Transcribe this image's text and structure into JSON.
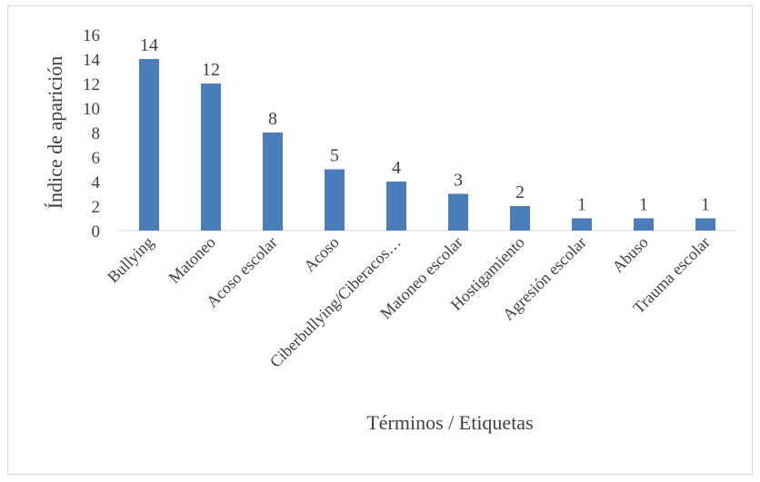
{
  "chart_data": {
    "type": "bar",
    "title": "",
    "xlabel": "Términos / Etiquetas",
    "ylabel": "Índice de aparición",
    "categories": [
      "Bullying",
      "Matoneo",
      "Acoso escolar",
      "Acoso",
      "Ciberbullying/Ciberacos…",
      "Matoneo escolar",
      "Hostigamiento",
      "Agresión escolar",
      "Abuso",
      "Trauma escolar"
    ],
    "values": [
      14,
      12,
      8,
      5,
      4,
      3,
      2,
      1,
      1,
      1
    ],
    "ylim": [
      0,
      16
    ],
    "yticks": [
      0,
      2,
      4,
      6,
      8,
      10,
      12,
      14,
      16
    ],
    "grid": false,
    "legend": "none",
    "bar_color": "#4a7ebb",
    "data_labels": true
  }
}
